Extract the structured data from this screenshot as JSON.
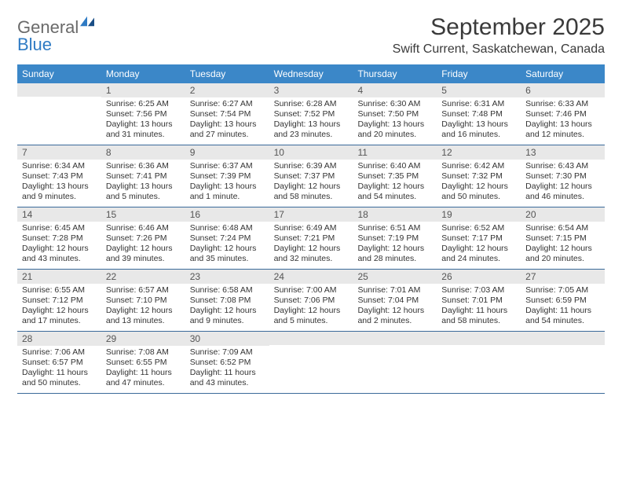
{
  "logo": {
    "text1": "General",
    "text2": "Blue"
  },
  "title": "September 2025",
  "location": "Swift Current, Saskatchewan, Canada",
  "colors": {
    "header_bg": "#3b87c8",
    "header_text": "#ffffff",
    "daynum_bg": "#e8e8e8",
    "row_border": "#3a6a9a",
    "logo_gray": "#6a6a6a",
    "logo_blue": "#2f7bc4"
  },
  "weekdays": [
    "Sunday",
    "Monday",
    "Tuesday",
    "Wednesday",
    "Thursday",
    "Friday",
    "Saturday"
  ],
  "weeks": [
    [
      null,
      {
        "n": "1",
        "sr": "Sunrise: 6:25 AM",
        "ss": "Sunset: 7:56 PM",
        "dl": "Daylight: 13 hours and 31 minutes."
      },
      {
        "n": "2",
        "sr": "Sunrise: 6:27 AM",
        "ss": "Sunset: 7:54 PM",
        "dl": "Daylight: 13 hours and 27 minutes."
      },
      {
        "n": "3",
        "sr": "Sunrise: 6:28 AM",
        "ss": "Sunset: 7:52 PM",
        "dl": "Daylight: 13 hours and 23 minutes."
      },
      {
        "n": "4",
        "sr": "Sunrise: 6:30 AM",
        "ss": "Sunset: 7:50 PM",
        "dl": "Daylight: 13 hours and 20 minutes."
      },
      {
        "n": "5",
        "sr": "Sunrise: 6:31 AM",
        "ss": "Sunset: 7:48 PM",
        "dl": "Daylight: 13 hours and 16 minutes."
      },
      {
        "n": "6",
        "sr": "Sunrise: 6:33 AM",
        "ss": "Sunset: 7:46 PM",
        "dl": "Daylight: 13 hours and 12 minutes."
      }
    ],
    [
      {
        "n": "7",
        "sr": "Sunrise: 6:34 AM",
        "ss": "Sunset: 7:43 PM",
        "dl": "Daylight: 13 hours and 9 minutes."
      },
      {
        "n": "8",
        "sr": "Sunrise: 6:36 AM",
        "ss": "Sunset: 7:41 PM",
        "dl": "Daylight: 13 hours and 5 minutes."
      },
      {
        "n": "9",
        "sr": "Sunrise: 6:37 AM",
        "ss": "Sunset: 7:39 PM",
        "dl": "Daylight: 13 hours and 1 minute."
      },
      {
        "n": "10",
        "sr": "Sunrise: 6:39 AM",
        "ss": "Sunset: 7:37 PM",
        "dl": "Daylight: 12 hours and 58 minutes."
      },
      {
        "n": "11",
        "sr": "Sunrise: 6:40 AM",
        "ss": "Sunset: 7:35 PM",
        "dl": "Daylight: 12 hours and 54 minutes."
      },
      {
        "n": "12",
        "sr": "Sunrise: 6:42 AM",
        "ss": "Sunset: 7:32 PM",
        "dl": "Daylight: 12 hours and 50 minutes."
      },
      {
        "n": "13",
        "sr": "Sunrise: 6:43 AM",
        "ss": "Sunset: 7:30 PM",
        "dl": "Daylight: 12 hours and 46 minutes."
      }
    ],
    [
      {
        "n": "14",
        "sr": "Sunrise: 6:45 AM",
        "ss": "Sunset: 7:28 PM",
        "dl": "Daylight: 12 hours and 43 minutes."
      },
      {
        "n": "15",
        "sr": "Sunrise: 6:46 AM",
        "ss": "Sunset: 7:26 PM",
        "dl": "Daylight: 12 hours and 39 minutes."
      },
      {
        "n": "16",
        "sr": "Sunrise: 6:48 AM",
        "ss": "Sunset: 7:24 PM",
        "dl": "Daylight: 12 hours and 35 minutes."
      },
      {
        "n": "17",
        "sr": "Sunrise: 6:49 AM",
        "ss": "Sunset: 7:21 PM",
        "dl": "Daylight: 12 hours and 32 minutes."
      },
      {
        "n": "18",
        "sr": "Sunrise: 6:51 AM",
        "ss": "Sunset: 7:19 PM",
        "dl": "Daylight: 12 hours and 28 minutes."
      },
      {
        "n": "19",
        "sr": "Sunrise: 6:52 AM",
        "ss": "Sunset: 7:17 PM",
        "dl": "Daylight: 12 hours and 24 minutes."
      },
      {
        "n": "20",
        "sr": "Sunrise: 6:54 AM",
        "ss": "Sunset: 7:15 PM",
        "dl": "Daylight: 12 hours and 20 minutes."
      }
    ],
    [
      {
        "n": "21",
        "sr": "Sunrise: 6:55 AM",
        "ss": "Sunset: 7:12 PM",
        "dl": "Daylight: 12 hours and 17 minutes."
      },
      {
        "n": "22",
        "sr": "Sunrise: 6:57 AM",
        "ss": "Sunset: 7:10 PM",
        "dl": "Daylight: 12 hours and 13 minutes."
      },
      {
        "n": "23",
        "sr": "Sunrise: 6:58 AM",
        "ss": "Sunset: 7:08 PM",
        "dl": "Daylight: 12 hours and 9 minutes."
      },
      {
        "n": "24",
        "sr": "Sunrise: 7:00 AM",
        "ss": "Sunset: 7:06 PM",
        "dl": "Daylight: 12 hours and 5 minutes."
      },
      {
        "n": "25",
        "sr": "Sunrise: 7:01 AM",
        "ss": "Sunset: 7:04 PM",
        "dl": "Daylight: 12 hours and 2 minutes."
      },
      {
        "n": "26",
        "sr": "Sunrise: 7:03 AM",
        "ss": "Sunset: 7:01 PM",
        "dl": "Daylight: 11 hours and 58 minutes."
      },
      {
        "n": "27",
        "sr": "Sunrise: 7:05 AM",
        "ss": "Sunset: 6:59 PM",
        "dl": "Daylight: 11 hours and 54 minutes."
      }
    ],
    [
      {
        "n": "28",
        "sr": "Sunrise: 7:06 AM",
        "ss": "Sunset: 6:57 PM",
        "dl": "Daylight: 11 hours and 50 minutes."
      },
      {
        "n": "29",
        "sr": "Sunrise: 7:08 AM",
        "ss": "Sunset: 6:55 PM",
        "dl": "Daylight: 11 hours and 47 minutes."
      },
      {
        "n": "30",
        "sr": "Sunrise: 7:09 AM",
        "ss": "Sunset: 6:52 PM",
        "dl": "Daylight: 11 hours and 43 minutes."
      },
      null,
      null,
      null,
      null
    ]
  ]
}
